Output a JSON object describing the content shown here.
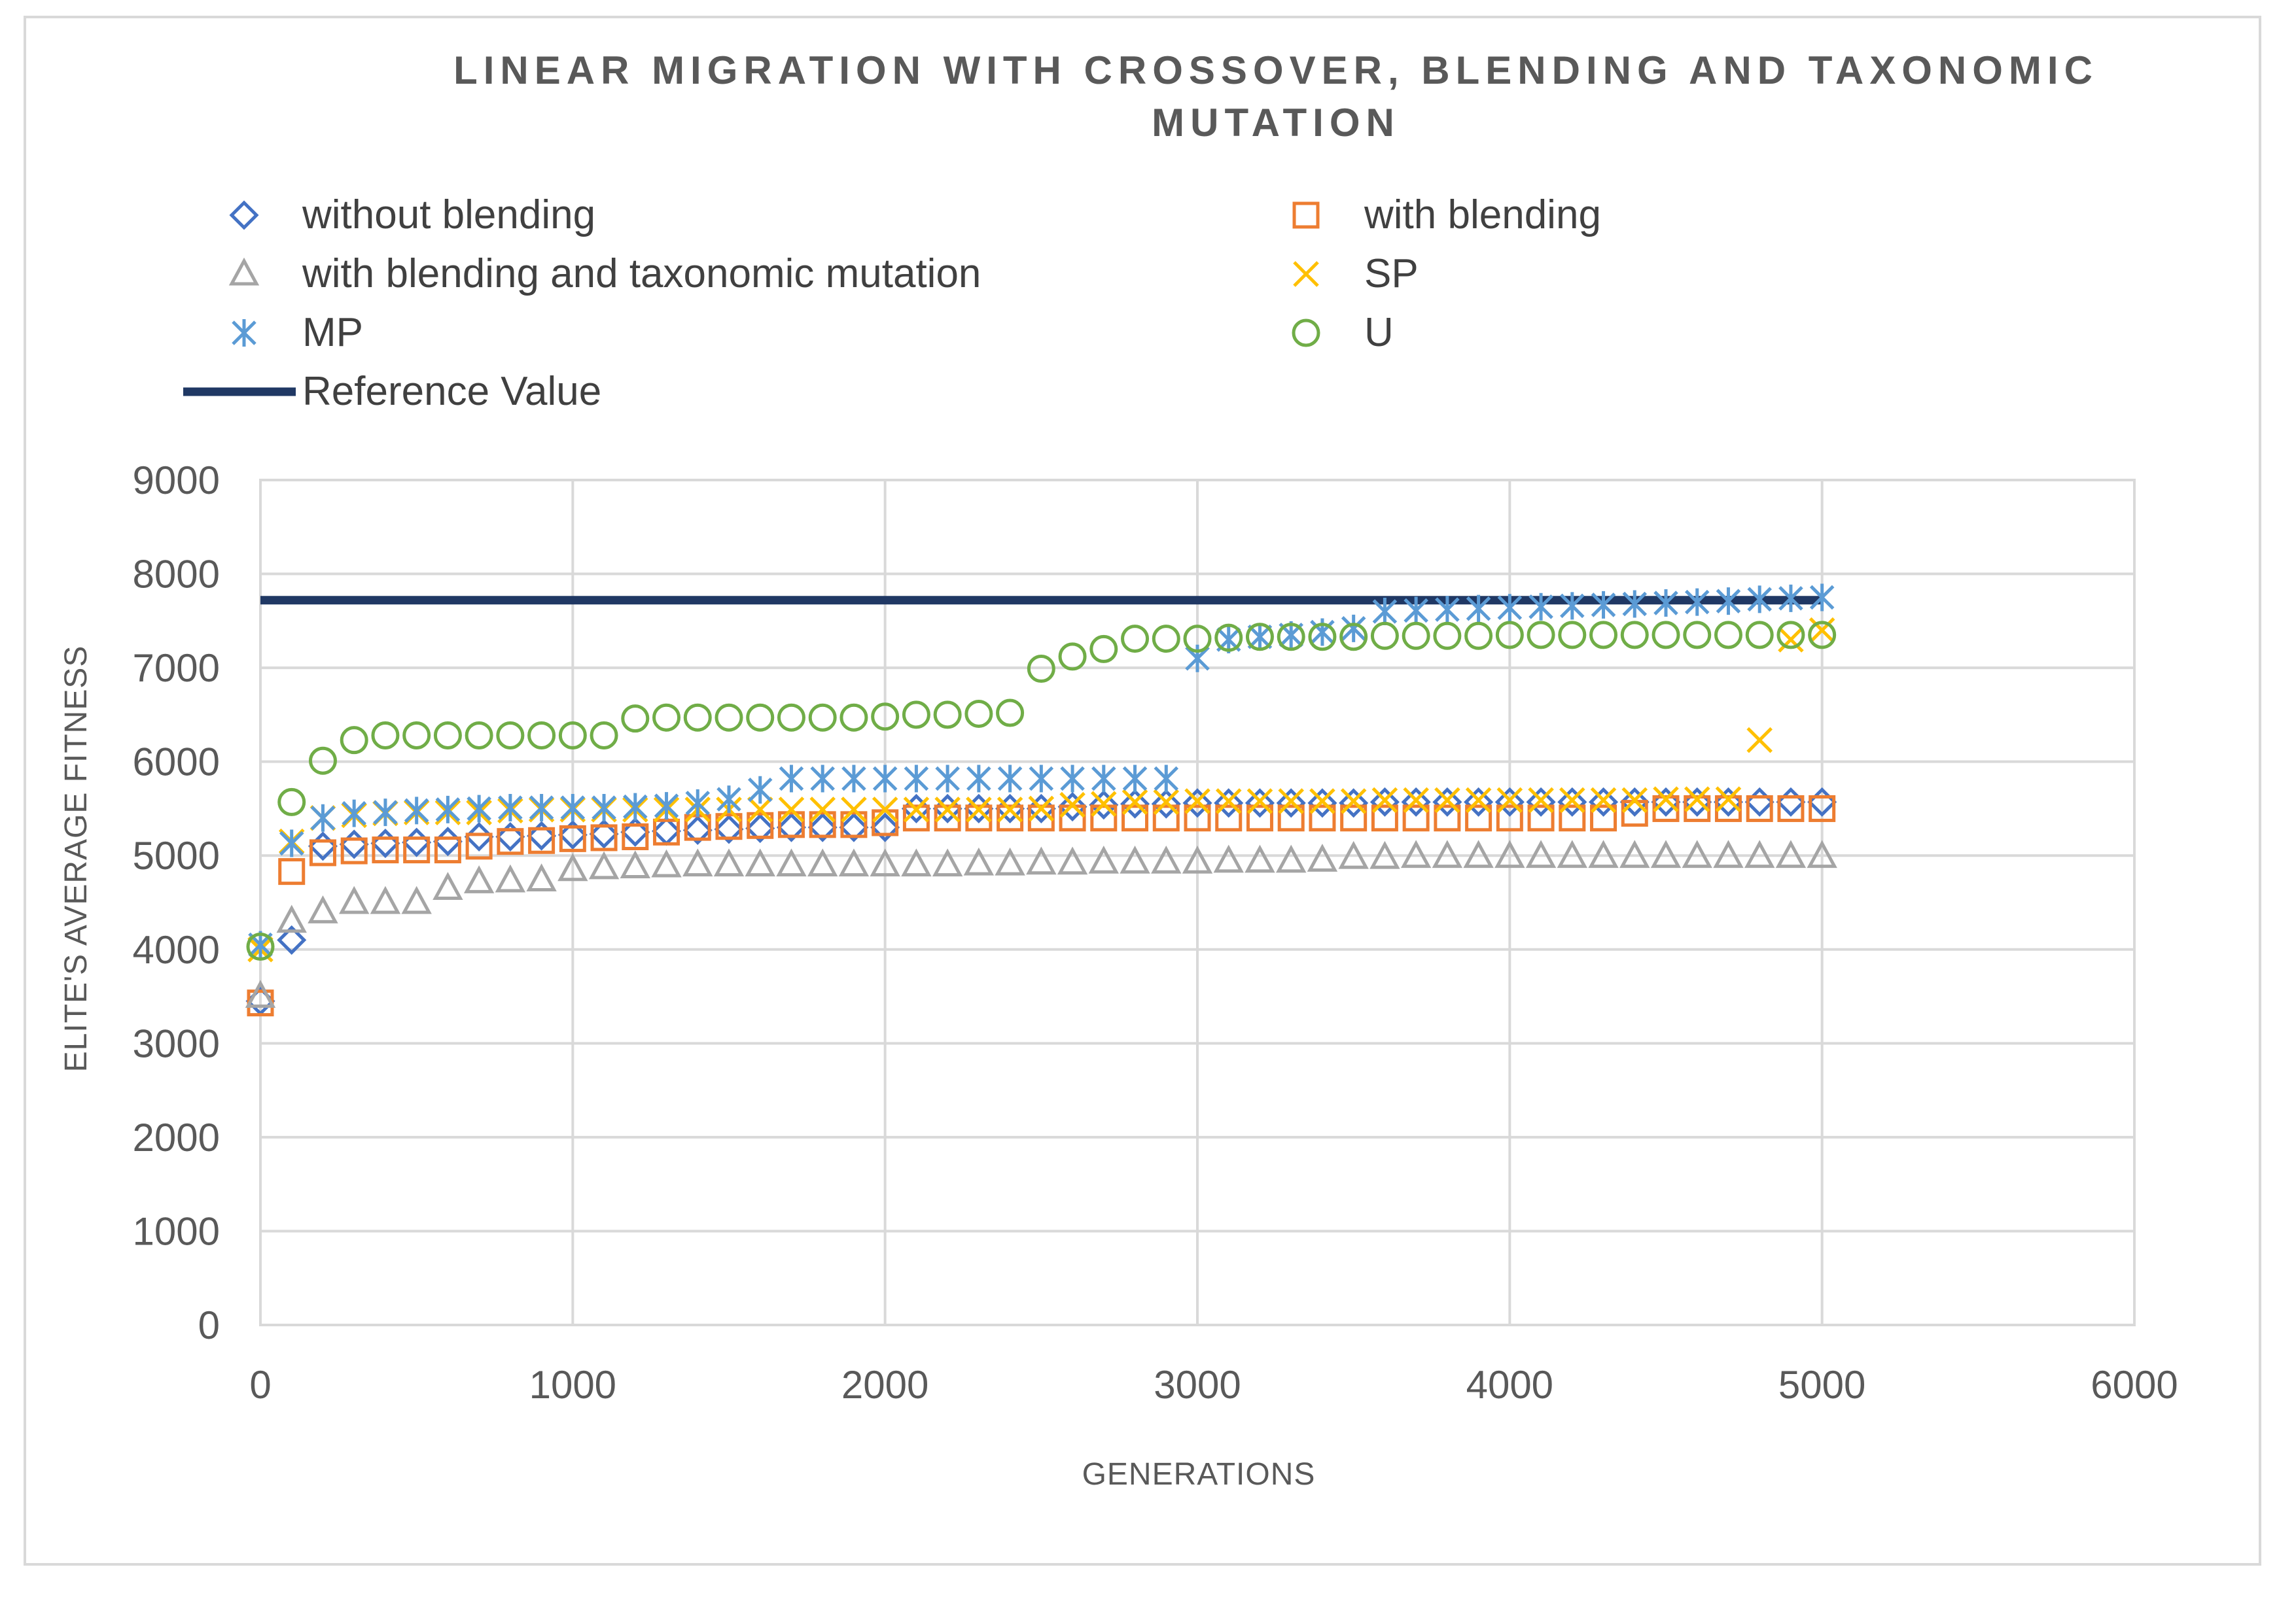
{
  "chart_data": {
    "type": "scatter",
    "title": "LINEAR MIGRATION WITH CROSSOVER, BLENDING AND TAXONOMIC MUTATION",
    "title_lines": [
      "LINEAR MIGRATION WITH CROSSOVER, BLENDING AND TAXONOMIC",
      "MUTATION"
    ],
    "xlabel": "GENERATIONS",
    "ylabel": "ELITE'S AVERAGE FITNESS",
    "xlim": [
      0,
      6000
    ],
    "ylim": [
      0,
      9000
    ],
    "xticks": [
      0,
      1000,
      2000,
      3000,
      4000,
      5000,
      6000
    ],
    "yticks": [
      0,
      1000,
      2000,
      3000,
      4000,
      5000,
      6000,
      7000,
      8000,
      9000
    ],
    "grid": true,
    "legend_position": "top",
    "x": [
      0,
      100,
      200,
      300,
      400,
      500,
      600,
      700,
      800,
      900,
      1000,
      1100,
      1200,
      1300,
      1400,
      1500,
      1600,
      1700,
      1800,
      1900,
      2000,
      2100,
      2200,
      2300,
      2400,
      2500,
      2600,
      2700,
      2800,
      2900,
      3000,
      3100,
      3200,
      3300,
      3400,
      3500,
      3600,
      3700,
      3800,
      3900,
      4000,
      4100,
      4200,
      4300,
      4400,
      4500,
      4600,
      4700,
      4800,
      4900,
      5000
    ],
    "series": [
      {
        "name": "without blending",
        "marker": "diamond",
        "color": "#4472c4",
        "values": [
          3450,
          4100,
          5100,
          5120,
          5130,
          5140,
          5150,
          5200,
          5200,
          5210,
          5220,
          5230,
          5250,
          5260,
          5270,
          5280,
          5290,
          5300,
          5300,
          5300,
          5300,
          5500,
          5500,
          5500,
          5500,
          5500,
          5520,
          5540,
          5550,
          5550,
          5560,
          5560,
          5560,
          5560,
          5560,
          5560,
          5570,
          5570,
          5570,
          5570,
          5570,
          5570,
          5570,
          5570,
          5570,
          5570,
          5570,
          5570,
          5570,
          5570,
          5570
        ]
      },
      {
        "name": "with blending",
        "marker": "square",
        "color": "#ed7d31",
        "values": [
          3430,
          4830,
          5030,
          5050,
          5060,
          5060,
          5060,
          5100,
          5150,
          5160,
          5180,
          5190,
          5200,
          5250,
          5300,
          5310,
          5320,
          5330,
          5330,
          5330,
          5350,
          5400,
          5400,
          5400,
          5400,
          5400,
          5400,
          5400,
          5400,
          5400,
          5400,
          5400,
          5400,
          5400,
          5400,
          5400,
          5400,
          5400,
          5400,
          5400,
          5400,
          5400,
          5400,
          5400,
          5450,
          5500,
          5500,
          5500,
          5500,
          5500,
          5500
        ]
      },
      {
        "name": "with blending and  taxonomic mutation",
        "marker": "triangle",
        "color": "#a5a5a5",
        "values": [
          3500,
          4300,
          4400,
          4500,
          4500,
          4500,
          4650,
          4720,
          4730,
          4740,
          4850,
          4870,
          4880,
          4890,
          4900,
          4900,
          4900,
          4900,
          4900,
          4900,
          4900,
          4900,
          4900,
          4910,
          4910,
          4920,
          4920,
          4930,
          4930,
          4930,
          4930,
          4940,
          4940,
          4940,
          4950,
          4980,
          4980,
          4990,
          4990,
          4990,
          4990,
          4990,
          4990,
          4990,
          4990,
          4990,
          4990,
          4990,
          4990,
          4990,
          4990
        ]
      },
      {
        "name": "SP",
        "marker": "x",
        "color": "#ffc000",
        "values": [
          4000,
          5150,
          5400,
          5430,
          5450,
          5460,
          5460,
          5460,
          5480,
          5490,
          5490,
          5490,
          5490,
          5490,
          5490,
          5490,
          5490,
          5490,
          5490,
          5490,
          5490,
          5490,
          5490,
          5490,
          5490,
          5500,
          5540,
          5550,
          5570,
          5570,
          5580,
          5580,
          5580,
          5580,
          5580,
          5580,
          5590,
          5590,
          5590,
          5590,
          5590,
          5590,
          5590,
          5590,
          5590,
          5600,
          5600,
          5600,
          6230,
          7300,
          7400
        ]
      },
      {
        "name": "MP",
        "marker": "asterisk",
        "color": "#5b9bd5",
        "values": [
          4050,
          5130,
          5400,
          5450,
          5460,
          5480,
          5490,
          5500,
          5510,
          5510,
          5510,
          5510,
          5520,
          5530,
          5560,
          5600,
          5700,
          5820,
          5820,
          5820,
          5820,
          5820,
          5820,
          5820,
          5820,
          5820,
          5820,
          5820,
          5820,
          5820,
          7100,
          7300,
          7330,
          7350,
          7380,
          7420,
          7600,
          7610,
          7620,
          7630,
          7640,
          7650,
          7660,
          7670,
          7680,
          7690,
          7700,
          7710,
          7730,
          7740,
          7750
        ]
      },
      {
        "name": "U",
        "marker": "circle",
        "color": "#70ad47",
        "values": [
          4030,
          5570,
          6010,
          6230,
          6280,
          6280,
          6280,
          6280,
          6280,
          6280,
          6280,
          6280,
          6460,
          6470,
          6470,
          6470,
          6470,
          6470,
          6470,
          6470,
          6480,
          6500,
          6500,
          6510,
          6520,
          6990,
          7120,
          7200,
          7310,
          7310,
          7310,
          7320,
          7330,
          7330,
          7330,
          7330,
          7340,
          7340,
          7340,
          7340,
          7350,
          7350,
          7350,
          7350,
          7350,
          7350,
          7350,
          7350,
          7350,
          7350,
          7350
        ]
      },
      {
        "name": "Reference Value",
        "marker": "line",
        "color": "#203864",
        "x": [
          0,
          5000
        ],
        "values": [
          7720,
          7720
        ]
      }
    ]
  }
}
